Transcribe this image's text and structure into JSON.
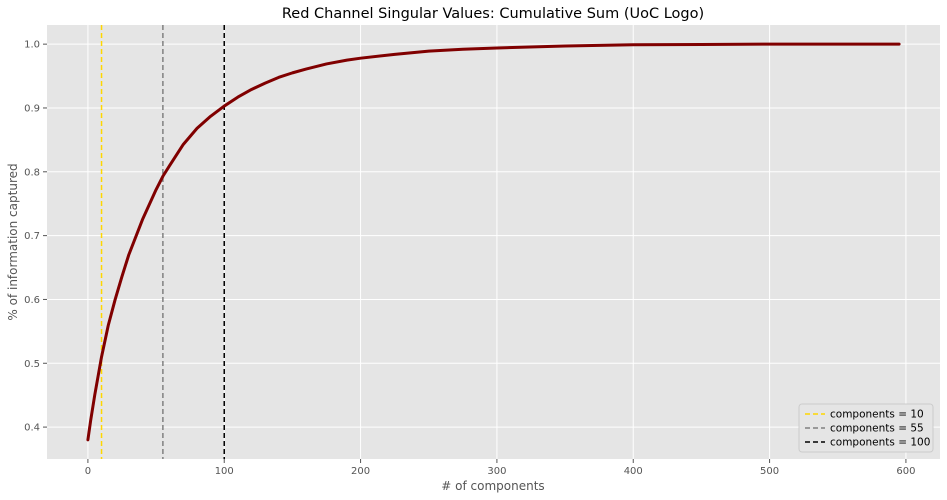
{
  "chart_data": {
    "type": "line",
    "title": "Red Channel Singular Values: Cumulative Sum (UoC Logo)",
    "xlabel": "# of components",
    "ylabel": "% of information captured",
    "xlim": [
      -30,
      625
    ],
    "ylim": [
      0.35,
      1.03
    ],
    "xticks": [
      0,
      100,
      200,
      300,
      400,
      500,
      600
    ],
    "yticks": [
      0.4,
      0.5,
      0.6,
      0.7,
      0.8,
      0.9,
      1.0
    ],
    "xtick_labels": [
      "0",
      "100",
      "200",
      "300",
      "400",
      "500",
      "600"
    ],
    "ytick_labels": [
      "0.4",
      "0.5",
      "0.6",
      "0.7",
      "0.8",
      "0.9",
      "1.0"
    ],
    "grid": true,
    "legend_position": "bottom-right",
    "background_color": "#e5e5e5",
    "series": [
      {
        "color": "#800000",
        "x": [
          0,
          2,
          5,
          10,
          15,
          20,
          25,
          30,
          40,
          50,
          55,
          60,
          70,
          80,
          90,
          100,
          110,
          120,
          130,
          140,
          150,
          160,
          175,
          190,
          200,
          225,
          250,
          275,
          300,
          350,
          400,
          450,
          500,
          550,
          595
        ],
        "y": [
          0.38,
          0.41,
          0.45,
          0.51,
          0.56,
          0.6,
          0.636,
          0.67,
          0.725,
          0.772,
          0.793,
          0.81,
          0.843,
          0.868,
          0.887,
          0.903,
          0.917,
          0.929,
          0.939,
          0.948,
          0.955,
          0.961,
          0.969,
          0.975,
          0.978,
          0.984,
          0.989,
          0.992,
          0.994,
          0.997,
          0.999,
          0.9995,
          1.0,
          1.0,
          1.0
        ]
      }
    ],
    "vlines": [
      {
        "x": 10,
        "color": "#ffd700",
        "label": "components = 10"
      },
      {
        "x": 55,
        "color": "#808080",
        "label": "components = 55"
      },
      {
        "x": 100,
        "color": "#000000",
        "label": "components = 100"
      }
    ]
  }
}
